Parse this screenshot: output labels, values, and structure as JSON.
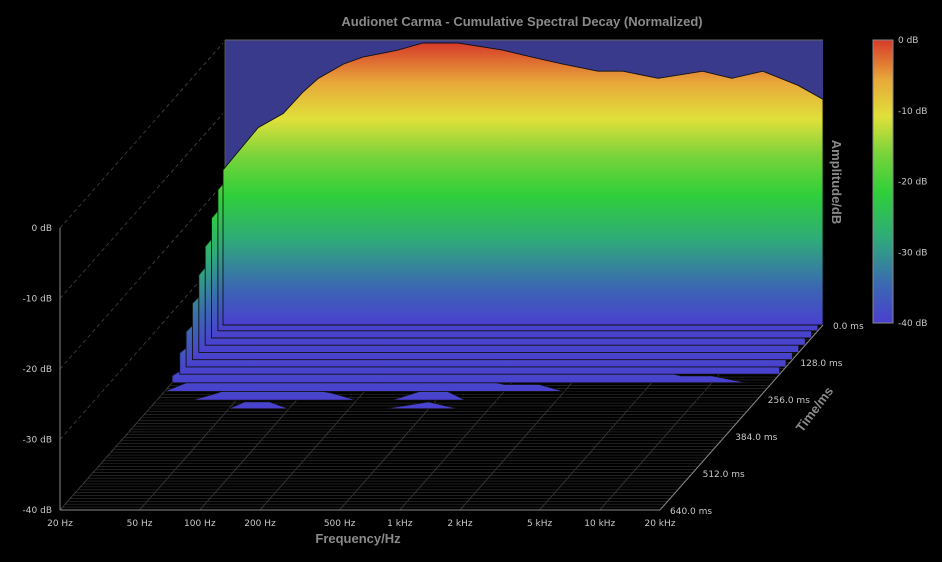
{
  "chart_data": {
    "type": "waterfall-3d",
    "title": "Audionet Carma - Cumulative Spectral Decay (Normalized)",
    "xlabel": "Frequency/Hz",
    "ylabel": "Amplitude/dB",
    "zlabel": "Time/ms",
    "x_scale": "log",
    "xlim": [
      20,
      20000
    ],
    "ylim": [
      -40,
      0
    ],
    "zlim": [
      0,
      640
    ],
    "x_ticks": [
      "20 Hz",
      "50 Hz",
      "100 Hz",
      "200 Hz",
      "500 Hz",
      "1 kHz",
      "2 kHz",
      "5 kHz",
      "10 kHz",
      "20 kHz"
    ],
    "x_tick_values": [
      20,
      50,
      100,
      200,
      500,
      1000,
      2000,
      5000,
      10000,
      20000
    ],
    "y_ticks": [
      "0 dB",
      "-10 dB",
      "-20 dB",
      "-30 dB",
      "-40 dB"
    ],
    "y_tick_values": [
      0,
      -10,
      -20,
      -30,
      -40
    ],
    "z_ticks": [
      "0.0 ms",
      "128.0 ms",
      "256.0 ms",
      "384.0 ms",
      "512.0 ms",
      "640.0 ms"
    ],
    "z_tick_values": [
      0,
      128,
      256,
      384,
      512,
      640
    ],
    "colorbar": {
      "ticks": [
        "0 dB",
        "-10 dB",
        "-20 dB",
        "-30 dB",
        "-40 dB"
      ],
      "values": [
        0,
        -10,
        -20,
        -30,
        -40
      ],
      "colors": [
        "#d63a2a",
        "#e8a83a",
        "#e0e03a",
        "#7ad33a",
        "#2fcf3a",
        "#2faa7a",
        "#3a6ab0",
        "#4a3fd0"
      ]
    },
    "frequencies": [
      20,
      30,
      40,
      50,
      60,
      80,
      100,
      150,
      200,
      300,
      500,
      700,
      1000,
      1500,
      2000,
      3000,
      5000,
      7000,
      10000,
      15000,
      20000
    ],
    "slices": [
      {
        "time_ms": 0,
        "values": [
          -18,
          -12,
          -10,
          -7,
          -5,
          -3,
          -2,
          -1,
          0,
          0,
          -1,
          -2,
          -3,
          -4,
          -4,
          -5,
          -4,
          -5,
          -4,
          -6,
          -8
        ]
      },
      {
        "time_ms": 20,
        "values": [
          -20,
          -14,
          -12,
          -9,
          -7,
          -5,
          -4,
          -3,
          -2,
          -3,
          -5,
          -6,
          -7,
          -8,
          -8,
          -9,
          -10,
          -10,
          -11,
          -12,
          -14
        ]
      },
      {
        "time_ms": 45,
        "values": [
          -23,
          -17,
          -14,
          -11,
          -9,
          -8,
          -7,
          -6,
          -6,
          -7,
          -8,
          -10,
          -11,
          -12,
          -13,
          -14,
          -15,
          -16,
          -17,
          -18,
          -20
        ]
      },
      {
        "time_ms": 70,
        "values": [
          -26,
          -20,
          -17,
          -14,
          -12,
          -11,
          -10,
          -9,
          -9,
          -10,
          -11,
          -13,
          -14,
          -16,
          -17,
          -18,
          -19,
          -20,
          -21,
          -22,
          -24
        ]
      },
      {
        "time_ms": 95,
        "values": [
          -29,
          -23,
          -20,
          -17,
          -15,
          -14,
          -13,
          -13,
          -12,
          -13,
          -15,
          -17,
          -18,
          -20,
          -21,
          -22,
          -23,
          -24,
          -25,
          -26,
          -28
        ]
      },
      {
        "time_ms": 120,
        "values": [
          -32,
          -27,
          -24,
          -21,
          -19,
          -17,
          -16,
          -16,
          -16,
          -17,
          -19,
          -21,
          -22,
          -24,
          -25,
          -26,
          -27,
          -28,
          -29,
          -30,
          -31
        ]
      },
      {
        "time_ms": 145,
        "values": [
          -35,
          -30,
          -27,
          -24,
          -22,
          -21,
          -20,
          -20,
          -20,
          -21,
          -23,
          -25,
          -26,
          -28,
          -29,
          -30,
          -31,
          -32,
          -33,
          -34,
          -35
        ]
      },
      {
        "time_ms": 170,
        "values": [
          -37,
          -33,
          -30,
          -28,
          -26,
          -25,
          -24,
          -24,
          -24,
          -25,
          -27,
          -29,
          -30,
          -32,
          -33,
          -34,
          -35,
          -36,
          -37,
          -38,
          -38
        ]
      },
      {
        "time_ms": 200,
        "values": [
          -39,
          -36,
          -34,
          -32,
          -30,
          -29,
          -28,
          -28,
          -29,
          -30,
          -32,
          -34,
          -35,
          -36,
          -37,
          -38,
          -38,
          -39,
          -39,
          -40,
          -40
        ]
      },
      {
        "time_ms": 230,
        "values": [
          -40,
          -38,
          -37,
          -35,
          -34,
          -33,
          -33,
          -34,
          -35,
          -36,
          -37,
          -38,
          -39,
          -39,
          -40,
          -40,
          -40,
          -40,
          -40,
          -40,
          -40
        ]
      },
      {
        "time_ms": 260,
        "values": [
          -40,
          -40,
          -39,
          -38,
          -37,
          -37,
          -38,
          -39,
          -40,
          -40,
          -38,
          -40,
          -40,
          -40,
          -40,
          -40,
          -40,
          -40,
          -40,
          -40,
          -40
        ]
      },
      {
        "time_ms": 290,
        "values": [
          -40,
          -40,
          -40,
          -40,
          -39,
          -39,
          -40,
          -40,
          -40,
          -40,
          -39,
          -40,
          -40,
          -40,
          -40,
          -40,
          -40,
          -40,
          -40,
          -40,
          -40
        ]
      }
    ]
  }
}
